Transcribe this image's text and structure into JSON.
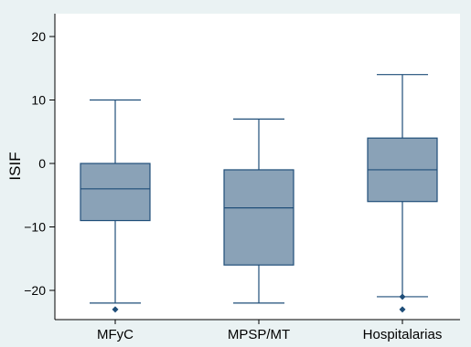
{
  "chart_data": {
    "type": "box",
    "title": "",
    "xlabel": "",
    "ylabel": "ISIF",
    "ylim": [
      -25,
      22
    ],
    "yticks": [
      20,
      10,
      0,
      -10,
      -20
    ],
    "ytick_labels": [
      "20",
      "10",
      "0",
      "−10",
      "−20"
    ],
    "categories": [
      "MFyC",
      "MPSP/MT",
      "Hospitalarias"
    ],
    "boxes": [
      {
        "category": "MFyC",
        "whisker_low": -22,
        "q1": -9,
        "median": -4,
        "q3": 0,
        "whisker_high": 10,
        "outliers": [
          -23
        ]
      },
      {
        "category": "MPSP/MT",
        "whisker_low": -22,
        "q1": -16,
        "median": -7,
        "q3": -1,
        "whisker_high": 7,
        "outliers": []
      },
      {
        "category": "Hospitalarias",
        "whisker_low": -21,
        "q1": -6,
        "median": -1,
        "q3": 4,
        "whisker_high": 14,
        "outliers": [
          -21,
          -23
        ]
      }
    ],
    "grid": false,
    "colors": {
      "box_fill": "#8aa2b7",
      "box_stroke": "#1f4e79",
      "outlier": "#1f4e79",
      "plot_background": "#ffffff",
      "figure_background": "#eaf2f3"
    }
  }
}
